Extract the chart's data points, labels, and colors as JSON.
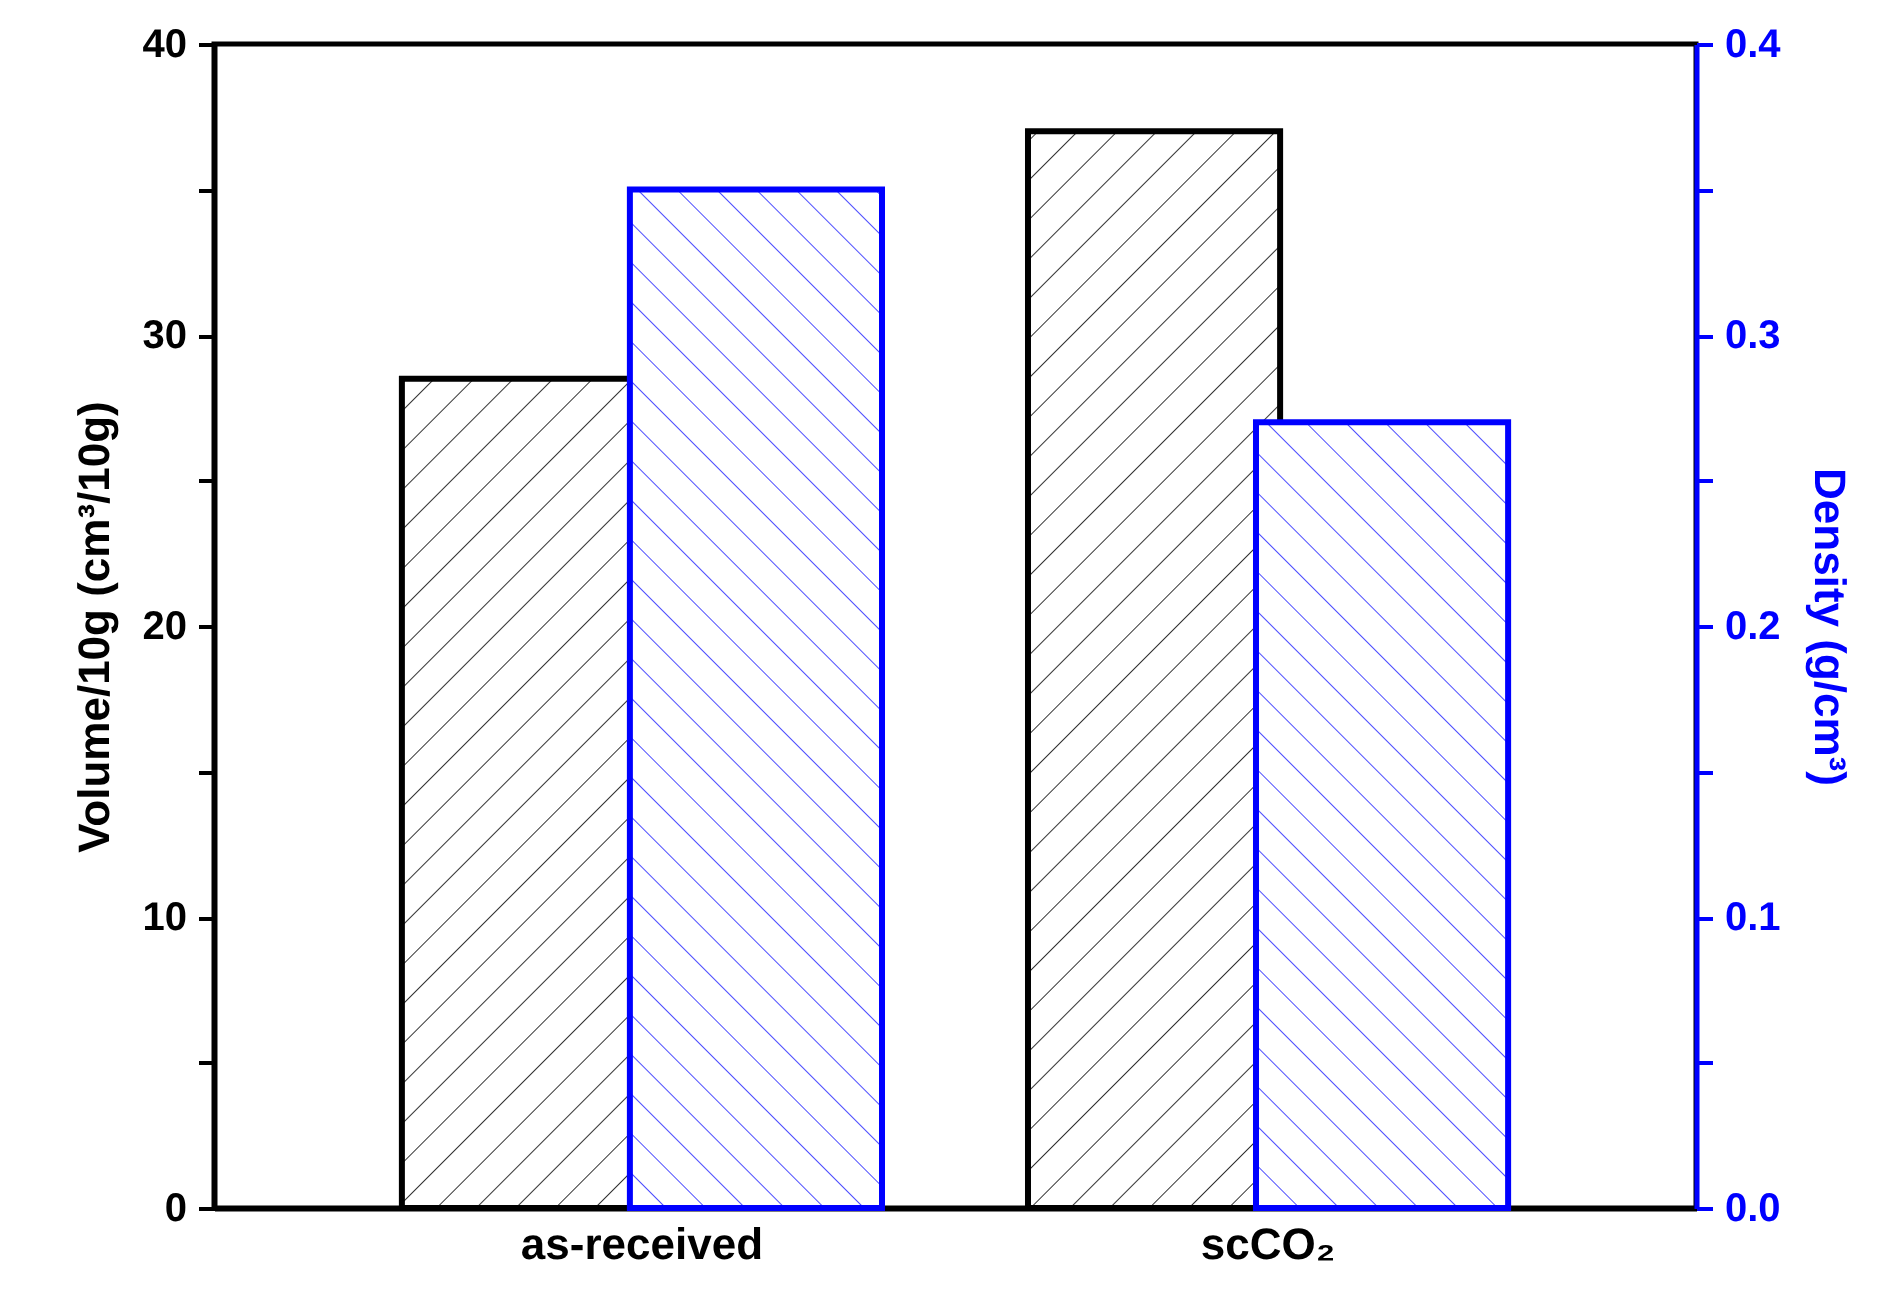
{
  "chart_data": {
    "type": "bar",
    "xlabel": null,
    "ylabel": "Volume/10g (cm³/10g)",
    "y2label": "Density (g/cm³)",
    "categories": [
      "as-received",
      "scCO₂"
    ],
    "series": [
      {
        "color": "#000000",
        "values": [
          28.5,
          37.0
        ]
      },
      {
        "color": "#0000ff",
        "values": [
          0.35,
          0.27
        ],
        "axis": "y2"
      }
    ],
    "ylim": [
      0,
      40
    ],
    "yticks": [
      0,
      {
        "value": 5,
        "label": null
      },
      10,
      {
        "value": 15,
        "label": null
      },
      20,
      {
        "value": 25,
        "label": null
      },
      30,
      {
        "value": 35,
        "label": null
      },
      40
    ],
    "y2lim": [
      0,
      0.4
    ],
    "y2ticks": [
      {
        "value": 0,
        "label": "0.0"
      },
      {
        "value": 0.05,
        "label": null
      },
      {
        "value": 0.1,
        "label": "0.1"
      },
      {
        "value": 0.15,
        "label": null
      },
      {
        "value": 0.2,
        "label": "0.2"
      },
      {
        "value": 0.25,
        "label": null
      },
      {
        "value": 0.3,
        "label": "0.3"
      },
      {
        "value": 0.35,
        "label": null
      },
      {
        "value": 0.4,
        "label": "0.4"
      }
    ],
    "grid": false,
    "legend": false
  }
}
